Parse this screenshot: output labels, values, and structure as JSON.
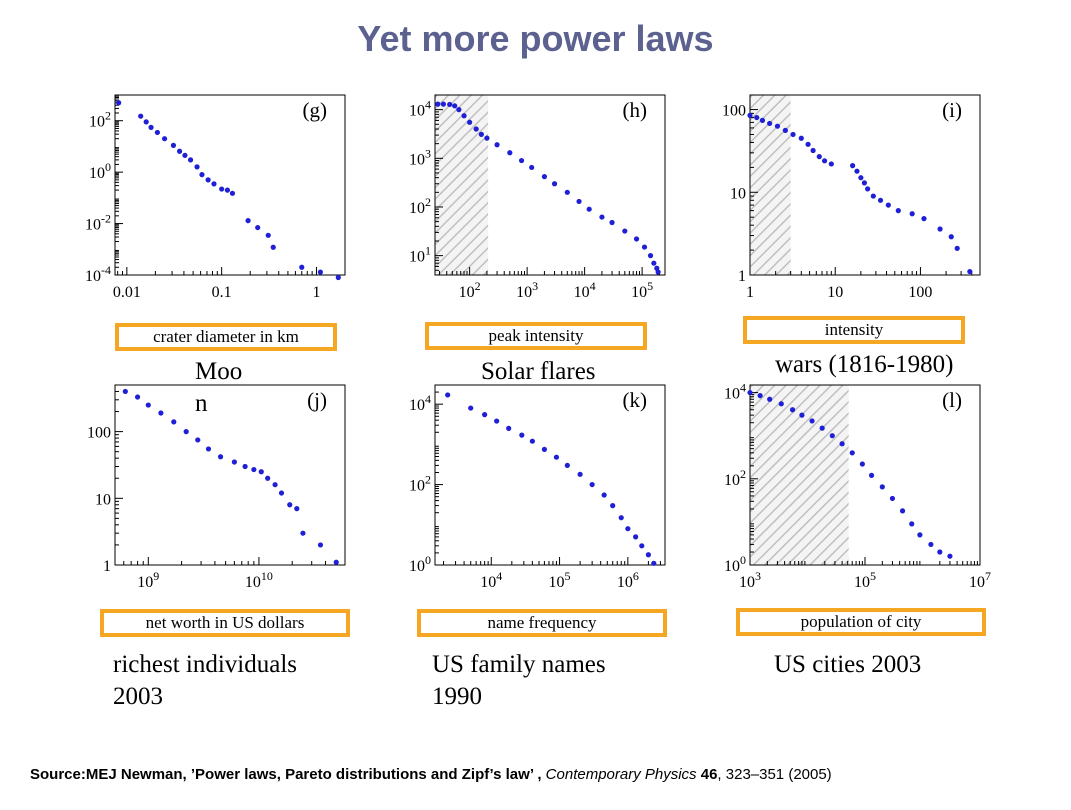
{
  "title": "Yet more power laws",
  "footer": {
    "prefix": "Source:MEJ Newman, ’Power laws, Pareto distributions and Zipf’s law’ ,",
    "journal": "Contemporary Physics",
    "volume": "46",
    "rest": ", 323–351 (2005)"
  },
  "colors": {
    "points": "#1f1fd6",
    "label_border": "#f5a623",
    "title": "#5c6190",
    "hatch": "#c0c0c0"
  },
  "chart_data": [
    {
      "id": "g",
      "type": "scatter",
      "panel_label": "(g)",
      "xlabel": "crater diameter in km",
      "caption": "Moo\nn",
      "xscale": "log",
      "yscale": "log",
      "xlim": [
        0.0075,
        2
      ],
      "ylim": [
        0.0001,
        1000
      ],
      "xticks": [
        0.01,
        0.1,
        1
      ],
      "xtick_labels": [
        "0.01",
        "0.1",
        "1"
      ],
      "yticks": [
        0.0001,
        0.01,
        1,
        100
      ],
      "ytick_labels": [
        "10^-4",
        "10^-2",
        "10^0",
        "10^2"
      ],
      "points": [
        [
          0.0082,
          500
        ],
        [
          0.014,
          150
        ],
        [
          0.016,
          90
        ],
        [
          0.018,
          55
        ],
        [
          0.021,
          35
        ],
        [
          0.025,
          20
        ],
        [
          0.031,
          11
        ],
        [
          0.036,
          6.5
        ],
        [
          0.041,
          4.5
        ],
        [
          0.047,
          3
        ],
        [
          0.055,
          1.6
        ],
        [
          0.062,
          0.8
        ],
        [
          0.072,
          0.5
        ],
        [
          0.083,
          0.35
        ],
        [
          0.1,
          0.22
        ],
        [
          0.115,
          0.2
        ],
        [
          0.13,
          0.15
        ],
        [
          0.19,
          0.013
        ],
        [
          0.24,
          0.007
        ],
        [
          0.31,
          0.0035
        ],
        [
          0.35,
          0.0012
        ],
        [
          0.7,
          0.0002
        ],
        [
          1.1,
          0.00013
        ],
        [
          1.7,
          8e-05
        ]
      ],
      "shaded": null
    },
    {
      "id": "h",
      "type": "scatter",
      "panel_label": "(h)",
      "xlabel": "peak intensity",
      "caption": "Solar flares",
      "xscale": "log",
      "yscale": "log",
      "xlim": [
        25,
        250000
      ],
      "ylim": [
        4,
        20000
      ],
      "xticks": [
        100,
        1000,
        10000,
        100000
      ],
      "xtick_labels": [
        "10^2",
        "10^3",
        "10^4",
        "10^5"
      ],
      "yticks": [
        10,
        100,
        1000,
        10000
      ],
      "ytick_labels": [
        "10^1",
        "10^2",
        "10^3",
        "10^4"
      ],
      "points": [
        [
          28,
          13000
        ],
        [
          35,
          13000
        ],
        [
          45,
          12800
        ],
        [
          55,
          12000
        ],
        [
          65,
          10000
        ],
        [
          80,
          7500
        ],
        [
          100,
          5500
        ],
        [
          130,
          4000
        ],
        [
          160,
          3100
        ],
        [
          200,
          2600
        ],
        [
          300,
          1900
        ],
        [
          500,
          1300
        ],
        [
          800,
          900
        ],
        [
          1200,
          650
        ],
        [
          2000,
          420
        ],
        [
          3000,
          300
        ],
        [
          5000,
          200
        ],
        [
          8000,
          130
        ],
        [
          12000,
          90
        ],
        [
          20000,
          62
        ],
        [
          30000,
          48
        ],
        [
          50000,
          32
        ],
        [
          80000,
          22
        ],
        [
          110000,
          15
        ],
        [
          140000,
          10
        ],
        [
          160000,
          7
        ],
        [
          180000,
          5.5
        ],
        [
          190000,
          4.6
        ]
      ],
      "shaded": [
        25,
        210
      ]
    },
    {
      "id": "i",
      "type": "scatter",
      "panel_label": "(i)",
      "xlabel": "intensity",
      "caption": "wars (1816-1980)",
      "xscale": "log",
      "yscale": "log",
      "xlim": [
        1,
        500
      ],
      "ylim": [
        1,
        150
      ],
      "xticks": [
        1,
        10,
        100
      ],
      "xtick_labels": [
        "1",
        "10",
        "100"
      ],
      "yticks": [
        1,
        10,
        100
      ],
      "ytick_labels": [
        "1",
        "10",
        "100"
      ],
      "points": [
        [
          1,
          85
        ],
        [
          1.2,
          80
        ],
        [
          1.4,
          74
        ],
        [
          1.7,
          68
        ],
        [
          2.1,
          63
        ],
        [
          2.6,
          56
        ],
        [
          3.2,
          50
        ],
        [
          4,
          45
        ],
        [
          4.8,
          38
        ],
        [
          5.5,
          32
        ],
        [
          6.5,
          27
        ],
        [
          7.5,
          24
        ],
        [
          9,
          22
        ],
        [
          16,
          21
        ],
        [
          18,
          18
        ],
        [
          20,
          15
        ],
        [
          22,
          13
        ],
        [
          24,
          11
        ],
        [
          28,
          9
        ],
        [
          34,
          8
        ],
        [
          42,
          7
        ],
        [
          55,
          6
        ],
        [
          80,
          5.5
        ],
        [
          110,
          4.8
        ],
        [
          170,
          3.6
        ],
        [
          230,
          2.9
        ],
        [
          270,
          2.1
        ],
        [
          380,
          1.1
        ]
      ],
      "shaded": [
        1,
        3
      ]
    },
    {
      "id": "j",
      "type": "scatter",
      "panel_label": "(j)",
      "xlabel": "net worth in US dollars",
      "caption": "richest individuals\n2003",
      "xscale": "log",
      "yscale": "log",
      "xlim": [
        500000000,
        60000000000
      ],
      "ylim": [
        1,
        500
      ],
      "xticks": [
        1000000000,
        10000000000
      ],
      "xtick_labels": [
        "10^9",
        "10^10"
      ],
      "yticks": [
        1,
        10,
        100
      ],
      "ytick_labels": [
        "1",
        "10",
        "100"
      ],
      "points": [
        [
          620000000,
          400
        ],
        [
          800000000,
          330
        ],
        [
          1000000000,
          250
        ],
        [
          1300000000,
          190
        ],
        [
          1700000000,
          140
        ],
        [
          2200000000,
          100
        ],
        [
          2800000000,
          75
        ],
        [
          3500000000,
          55
        ],
        [
          4500000000,
          42
        ],
        [
          6000000000,
          35
        ],
        [
          7500000000,
          30
        ],
        [
          9000000000,
          27
        ],
        [
          10500000000,
          25
        ],
        [
          12000000000,
          20
        ],
        [
          14000000000,
          16
        ],
        [
          16000000000,
          12
        ],
        [
          19000000000,
          8
        ],
        [
          22000000000,
          7
        ],
        [
          25000000000,
          3
        ],
        [
          36000000000,
          2
        ],
        [
          50000000000,
          1.1
        ]
      ],
      "shaded": null
    },
    {
      "id": "k",
      "type": "scatter",
      "panel_label": "(k)",
      "xlabel": "name frequency",
      "caption": "US family names\n1990",
      "xscale": "log",
      "yscale": "log",
      "xlim": [
        1500,
        3500000
      ],
      "ylim": [
        1,
        30000
      ],
      "xticks": [
        10000,
        100000,
        1000000
      ],
      "xtick_labels": [
        "10^4",
        "10^5",
        "10^6"
      ],
      "yticks": [
        1,
        100,
        10000
      ],
      "ytick_labels": [
        "10^0",
        "10^2",
        "10^4"
      ],
      "points": [
        [
          2300,
          17000
        ],
        [
          5000,
          8000
        ],
        [
          8000,
          5500
        ],
        [
          12000,
          3800
        ],
        [
          18000,
          2500
        ],
        [
          28000,
          1700
        ],
        [
          40000,
          1200
        ],
        [
          60000,
          750
        ],
        [
          90000,
          480
        ],
        [
          130000,
          300
        ],
        [
          200000,
          180
        ],
        [
          300000,
          100
        ],
        [
          450000,
          55
        ],
        [
          600000,
          30
        ],
        [
          800000,
          15
        ],
        [
          1000000,
          8
        ],
        [
          1300000,
          5
        ],
        [
          1600000,
          3
        ],
        [
          2000000,
          1.8
        ],
        [
          2400000,
          1.1
        ]
      ],
      "shaded": null
    },
    {
      "id": "l",
      "type": "scatter",
      "panel_label": "(l)",
      "xlabel": "population of city",
      "caption": "US cities 2003",
      "xscale": "log",
      "yscale": "log",
      "xlim": [
        1000,
        10000000
      ],
      "ylim": [
        1,
        15000
      ],
      "xticks": [
        1000,
        100000,
        10000000
      ],
      "xtick_labels": [
        "10^3",
        "10^5",
        "10^7"
      ],
      "yticks": [
        1,
        100,
        10000
      ],
      "ytick_labels": [
        "10^0",
        "10^2",
        "10^4"
      ],
      "points": [
        [
          1000,
          10000
        ],
        [
          1500,
          8500
        ],
        [
          2200,
          7000
        ],
        [
          3500,
          5500
        ],
        [
          5500,
          4000
        ],
        [
          8000,
          3000
        ],
        [
          12000,
          2200
        ],
        [
          18000,
          1500
        ],
        [
          27000,
          1000
        ],
        [
          40000,
          650
        ],
        [
          60000,
          400
        ],
        [
          90000,
          220
        ],
        [
          130000,
          120
        ],
        [
          200000,
          65
        ],
        [
          300000,
          35
        ],
        [
          450000,
          18
        ],
        [
          650000,
          9
        ],
        [
          900000,
          5
        ],
        [
          1400000,
          3
        ],
        [
          2000000,
          2
        ],
        [
          3000000,
          1.6
        ]
      ],
      "shaded": [
        1000,
        52000
      ]
    }
  ]
}
